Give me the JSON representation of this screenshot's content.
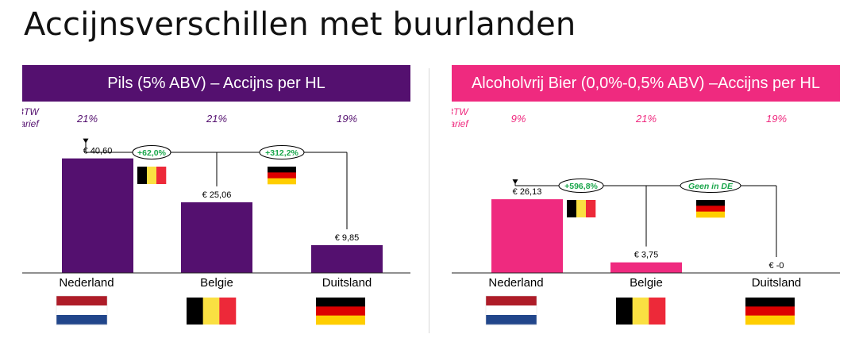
{
  "title": "Accijnsverschillen met buurlanden",
  "colors": {
    "left_accent": "#54106f",
    "right_accent": "#ef2a7f",
    "increase_text": "#1aa64b"
  },
  "chart_data": [
    {
      "type": "bar",
      "title": "Pils (5% ABV) – Accijns per HL",
      "categories": [
        "Nederland",
        "Belgie",
        "Duitsland"
      ],
      "values": [
        40.6,
        25.06,
        9.85
      ],
      "value_labels": [
        "€ 40,60",
        "€ 25,06",
        "€ 9,85"
      ],
      "btw_label": [
        "BTW",
        "tarief"
      ],
      "btw_rates": [
        "21%",
        "21%",
        "19%"
      ],
      "comparisons": [
        {
          "from": "Belgie",
          "to": "Nederland",
          "label": "+62,0%",
          "flag": "belgium-flag"
        },
        {
          "from": "Duitsland",
          "to": "Nederland",
          "label": "+312,2%",
          "flag": "germany-flag"
        }
      ],
      "flags": [
        "netherlands-flag",
        "belgium-flag",
        "germany-flag"
      ],
      "ylim": [
        0,
        45
      ],
      "color": "#54106f"
    },
    {
      "type": "bar",
      "title": "Alcoholvrij Bier (0,0%-0,5% ABV) –Accijns per HL",
      "categories": [
        "Nederland",
        "Belgie",
        "Duitsland"
      ],
      "values": [
        26.13,
        3.75,
        0
      ],
      "value_labels": [
        "€ 26,13",
        "€ 3,75",
        "€ -0"
      ],
      "btw_label": [
        "BTW",
        "tarief"
      ],
      "btw_rates": [
        "9%",
        "21%",
        "19%"
      ],
      "comparisons": [
        {
          "from": "Belgie",
          "to": "Nederland",
          "label": "+596,8%",
          "flag": "belgium-flag"
        },
        {
          "from": "Duitsland",
          "to": "Nederland",
          "label": "Geen in DE",
          "flag": "germany-flag"
        }
      ],
      "flags": [
        "netherlands-flag",
        "belgium-flag",
        "germany-flag"
      ],
      "ylim": [
        0,
        45
      ],
      "color": "#ef2a7f"
    }
  ]
}
